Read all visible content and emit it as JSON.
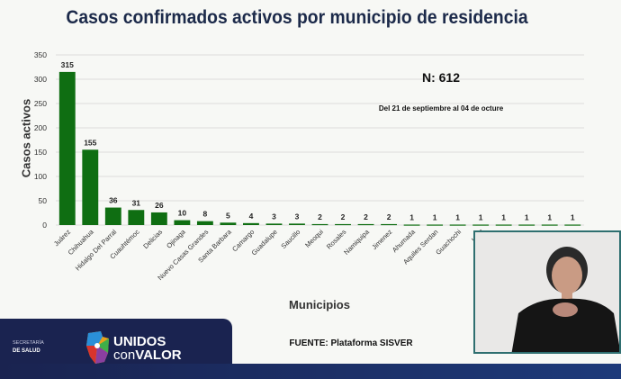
{
  "title": "Casos confirmados activos por municipio de residencia",
  "total": "N: 612",
  "date_range": "Del 21 de septiembre al 04 de octure",
  "source": "FUENTE: Plataforma SISVER",
  "footer": {
    "secretaria": "SECRETARÍA",
    "salud": "DE SALUD",
    "brand_line1": "UNIDOS",
    "brand_con": "con",
    "brand_valor": "VALOR"
  },
  "chart_data": {
    "type": "bar",
    "title": "Casos confirmados activos por municipio de residencia",
    "xlabel": "Municipios",
    "ylabel": "Casos activos",
    "ylim": [
      0,
      350
    ],
    "yticks": [
      0,
      50,
      100,
      150,
      200,
      250,
      300,
      350
    ],
    "color": "#0f6e12",
    "categories": [
      "Juárez",
      "Chihuahua",
      "Hidalgo Del Parral",
      "Cuauhtémoc",
      "Delicias",
      "Ojinaga",
      "Nuevo Casas Grandes",
      "Santa Barbara",
      "Camargo",
      "Guadalupe",
      "Saucillo",
      "Meoqui",
      "Rosales",
      "Namiquipa",
      "Jimenez",
      "Ahumada",
      "Aquiles Serdan",
      "Guachochi",
      "La C",
      "",
      "",
      "",
      ""
    ],
    "values": [
      315,
      155,
      36,
      31,
      26,
      10,
      8,
      5,
      4,
      3,
      3,
      2,
      2,
      2,
      2,
      1,
      1,
      1,
      1,
      1,
      1,
      1,
      1
    ]
  }
}
